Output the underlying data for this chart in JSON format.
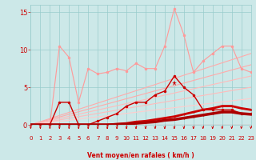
{
  "bg_color": "#cce8e8",
  "grid_color": "#99cccc",
  "xlabel": "Vent moyen/en rafales ( km/h )",
  "xlabel_color": "#cc0000",
  "tick_color": "#cc0000",
  "yticks": [
    0,
    5,
    10,
    15
  ],
  "xticks": [
    0,
    1,
    2,
    3,
    4,
    5,
    6,
    7,
    8,
    9,
    10,
    11,
    12,
    13,
    14,
    15,
    16,
    17,
    18,
    19,
    20,
    21,
    22,
    23
  ],
  "xlim": [
    0,
    23
  ],
  "ylim": [
    0,
    16
  ],
  "lines": [
    {
      "x": [
        0,
        1,
        2,
        3,
        4,
        5,
        6,
        7,
        8,
        9,
        10,
        11,
        12,
        13,
        14,
        15,
        16,
        17,
        18,
        19,
        20,
        21,
        22,
        23
      ],
      "y": [
        0,
        0,
        0,
        10.5,
        9.0,
        3.0,
        7.5,
        6.8,
        7.0,
        7.5,
        7.2,
        8.2,
        7.5,
        7.5,
        10.5,
        15.5,
        12.0,
        7.0,
        8.5,
        9.5,
        10.5,
        10.5,
        7.5,
        7.0
      ],
      "color": "#ff9999",
      "lw": 0.8,
      "marker": "o",
      "ms": 2.5,
      "zorder": 3
    },
    {
      "x": [
        0,
        23
      ],
      "y": [
        0,
        9.5
      ],
      "color": "#ffaaaa",
      "lw": 0.8,
      "marker": null,
      "ms": 0,
      "zorder": 2
    },
    {
      "x": [
        0,
        23
      ],
      "y": [
        0,
        8.0
      ],
      "color": "#ffaaaa",
      "lw": 0.8,
      "marker": null,
      "ms": 0,
      "zorder": 2
    },
    {
      "x": [
        0,
        23
      ],
      "y": [
        0,
        6.5
      ],
      "color": "#ffbbbb",
      "lw": 0.8,
      "marker": null,
      "ms": 0,
      "zorder": 2
    },
    {
      "x": [
        0,
        23
      ],
      "y": [
        0,
        5.0
      ],
      "color": "#ffbbbb",
      "lw": 0.8,
      "marker": null,
      "ms": 0,
      "zorder": 2
    },
    {
      "x": [
        0,
        23
      ],
      "y": [
        0,
        3.5
      ],
      "color": "#ffcccc",
      "lw": 0.8,
      "marker": null,
      "ms": 0,
      "zorder": 2
    },
    {
      "x": [
        0,
        1,
        2,
        3,
        4,
        5,
        6,
        7,
        8,
        9,
        10,
        11,
        12,
        13,
        14,
        15,
        16,
        17,
        18,
        19,
        20,
        21,
        22,
        23
      ],
      "y": [
        0,
        0,
        0,
        3.0,
        3.0,
        0,
        0,
        0.5,
        1.0,
        1.5,
        2.5,
        3.0,
        3.0,
        4.0,
        4.5,
        6.5,
        5.0,
        4.0,
        2.0,
        2.0,
        2.0,
        2.0,
        1.5,
        1.5
      ],
      "color": "#cc0000",
      "lw": 1.0,
      "marker": "o",
      "ms": 2.5,
      "zorder": 4
    },
    {
      "x": [
        15
      ],
      "y": [
        5.5
      ],
      "color": "#cc0000",
      "lw": 0,
      "marker": "*",
      "ms": 5,
      "zorder": 5
    },
    {
      "x": [
        0,
        1,
        2,
        3,
        4,
        5,
        6,
        7,
        8,
        9,
        10,
        11,
        12,
        13,
        14,
        15,
        16,
        17,
        18,
        19,
        20,
        21,
        22,
        23
      ],
      "y": [
        0,
        0,
        0,
        0,
        0,
        0,
        0,
        0,
        0,
        0.1,
        0.2,
        0.4,
        0.5,
        0.7,
        0.9,
        1.1,
        1.4,
        1.7,
        2.0,
        2.2,
        2.5,
        2.5,
        2.2,
        2.0
      ],
      "color": "#cc0000",
      "lw": 2.0,
      "marker": "o",
      "ms": 1.5,
      "zorder": 4
    },
    {
      "x": [
        0,
        1,
        2,
        3,
        4,
        5,
        6,
        7,
        8,
        9,
        10,
        11,
        12,
        13,
        14,
        15,
        16,
        17,
        18,
        19,
        20,
        21,
        22,
        23
      ],
      "y": [
        0,
        0,
        0,
        0,
        0,
        0,
        0,
        0,
        0,
        0.05,
        0.1,
        0.2,
        0.3,
        0.4,
        0.6,
        0.7,
        0.9,
        1.1,
        1.3,
        1.5,
        1.7,
        1.7,
        1.5,
        1.4
      ],
      "color": "#aa0000",
      "lw": 2.5,
      "marker": "o",
      "ms": 1.5,
      "zorder": 4
    }
  ],
  "wind_arrows": [
    0,
    1,
    2,
    3,
    4,
    5,
    6,
    7,
    8,
    9,
    10,
    11,
    12,
    13,
    14,
    15,
    16,
    17,
    18,
    19,
    20,
    21,
    22,
    23
  ],
  "arrow_color": "#cc0000",
  "xticklabels": [
    "0",
    "1",
    "2",
    "3",
    "4",
    "5",
    "6",
    "7",
    "8",
    "9",
    "10",
    "11",
    "12",
    "13",
    "14",
    "15",
    "16",
    "17",
    "18",
    "19",
    "20",
    "21",
    "22",
    "23"
  ]
}
